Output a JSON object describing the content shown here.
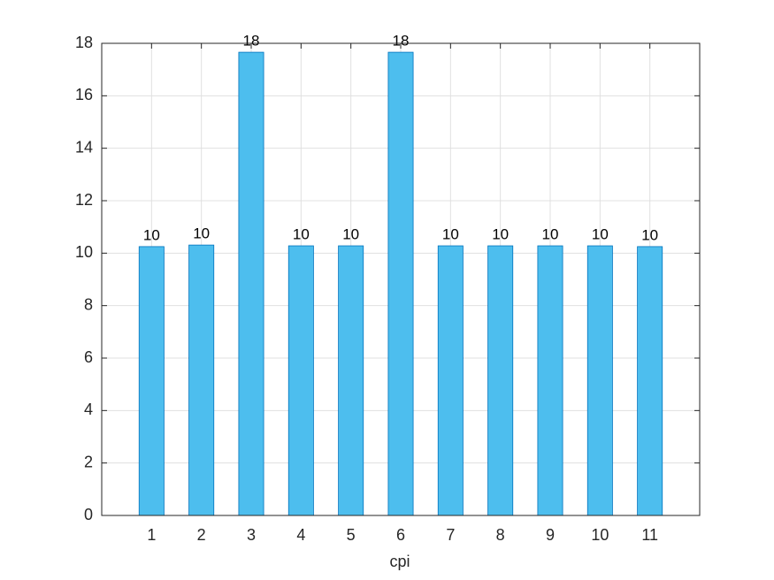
{
  "chart_data": {
    "type": "bar",
    "x_label": "cpi",
    "x": [
      1,
      2,
      3,
      4,
      5,
      6,
      7,
      8,
      9,
      10,
      11
    ],
    "values": [
      10.25,
      10.31,
      17.66,
      10.28,
      10.28,
      17.66,
      10.28,
      10.28,
      10.28,
      10.28,
      10.25
    ],
    "value_labels": [
      "10",
      "10",
      "18",
      "10",
      "10",
      "18",
      "10",
      "10",
      "10",
      "10",
      "10"
    ],
    "color": "#4dbeee",
    "edge_color": "#0072bd",
    "xlim": [
      0,
      12
    ],
    "xticks": [
      1,
      2,
      3,
      4,
      5,
      6,
      7,
      8,
      9,
      10,
      11
    ],
    "ylim": [
      0,
      18
    ],
    "yticks": [
      0,
      2,
      4,
      6,
      8,
      10,
      12,
      14,
      16,
      18
    ],
    "grid": true
  }
}
